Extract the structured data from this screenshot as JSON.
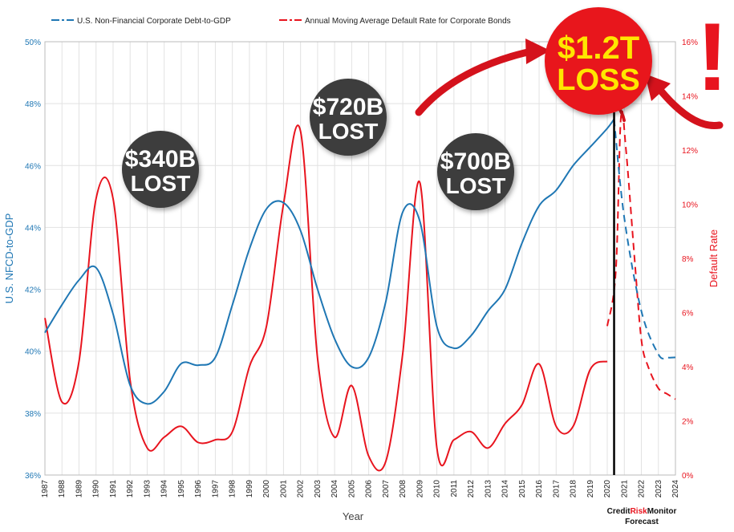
{
  "chart_data": {
    "type": "line",
    "legend": [
      {
        "name": "U.S. Non-Financial Corporate Debt-to-GDP",
        "color": "#1f77b4",
        "style": "solid-then-dashed"
      },
      {
        "name": "Annual Moving Average Default Rate for Corporate Bonds",
        "color": "#e8141e",
        "style": "solid-then-dashed"
      }
    ],
    "xlabel": "Year",
    "ylabel_left": "U.S. NFCD-to-GDP",
    "ylabel_right": "Default Rate",
    "x_categories": [
      "1987",
      "1988",
      "1989",
      "1990",
      "1991",
      "1992",
      "1993",
      "1994",
      "1995",
      "1996",
      "1997",
      "1998",
      "1999",
      "2000",
      "2001",
      "2002",
      "2003",
      "2004",
      "2005",
      "2006",
      "2007",
      "2008",
      "2009",
      "2010",
      "2011",
      "2012",
      "2013",
      "2014",
      "2015",
      "2016",
      "2017",
      "2018",
      "2019",
      "2020",
      "2021",
      "2022",
      "2023",
      "2024"
    ],
    "y_left": {
      "range": [
        36,
        50
      ],
      "ticks": [
        "36%",
        "38%",
        "40%",
        "42%",
        "44%",
        "46%",
        "48%",
        "50%"
      ]
    },
    "y_right": {
      "range": [
        0,
        16
      ],
      "ticks": [
        "0%",
        "2%",
        "4%",
        "6%",
        "8%",
        "10%",
        "12%",
        "14%",
        "16%"
      ]
    },
    "series": [
      {
        "name": "U.S. Non-Financial Corporate Debt-to-GDP",
        "axis": "left",
        "color": "#1f77b4",
        "points": [
          [
            1987,
            40.6
          ],
          [
            1988,
            41.5
          ],
          [
            1989,
            42.3
          ],
          [
            1990,
            42.7
          ],
          [
            1991,
            41.2
          ],
          [
            1992,
            38.9
          ],
          [
            1993,
            38.3
          ],
          [
            1994,
            38.7
          ],
          [
            1995,
            39.6
          ],
          [
            1996,
            39.55
          ],
          [
            1997,
            39.8
          ],
          [
            1998,
            41.5
          ],
          [
            1999,
            43.3
          ],
          [
            2000,
            44.6
          ],
          [
            2001,
            44.8
          ],
          [
            2002,
            43.9
          ],
          [
            2003,
            42.0
          ],
          [
            2004,
            40.4
          ],
          [
            2005,
            39.5
          ],
          [
            2006,
            39.8
          ],
          [
            2007,
            41.6
          ],
          [
            2008,
            44.5
          ],
          [
            2009,
            44.2
          ],
          [
            2010,
            40.8
          ],
          [
            2011,
            40.1
          ],
          [
            2012,
            40.5
          ],
          [
            2013,
            41.3
          ],
          [
            2014,
            42.0
          ],
          [
            2015,
            43.5
          ],
          [
            2016,
            44.7
          ],
          [
            2017,
            45.2
          ],
          [
            2018,
            46.0
          ],
          [
            2019,
            46.6
          ],
          [
            2020,
            47.2
          ],
          [
            2020.4,
            47.5
          ]
        ],
        "forecast": [
          [
            2020.4,
            47.5
          ],
          [
            2021,
            44.3
          ],
          [
            2022,
            41.3
          ],
          [
            2023,
            39.9
          ],
          [
            2023.5,
            39.8
          ],
          [
            2024,
            39.8
          ]
        ]
      },
      {
        "name": "Annual Moving Average Default Rate for Corporate Bonds",
        "axis": "right",
        "color": "#e8141e",
        "points": [
          [
            1987,
            5.8
          ],
          [
            1988,
            2.7
          ],
          [
            1989,
            4.2
          ],
          [
            1990,
            10.2
          ],
          [
            1991,
            10.2
          ],
          [
            1992,
            3.5
          ],
          [
            1993,
            1.0
          ],
          [
            1994,
            1.4
          ],
          [
            1995,
            1.8
          ],
          [
            1996,
            1.2
          ],
          [
            1997,
            1.3
          ],
          [
            1998,
            1.6
          ],
          [
            1999,
            4.0
          ],
          [
            2000,
            5.5
          ],
          [
            2001,
            10.0
          ],
          [
            2002,
            12.7
          ],
          [
            2003,
            4.3
          ],
          [
            2004,
            1.4
          ],
          [
            2005,
            3.3
          ],
          [
            2006,
            0.7
          ],
          [
            2007,
            0.5
          ],
          [
            2008,
            4.5
          ],
          [
            2009,
            10.8
          ],
          [
            2010,
            1.0
          ],
          [
            2011,
            1.3
          ],
          [
            2012,
            1.6
          ],
          [
            2013,
            1.0
          ],
          [
            2014,
            1.9
          ],
          [
            2015,
            2.6
          ],
          [
            2016,
            4.1
          ],
          [
            2017,
            1.8
          ],
          [
            2018,
            1.8
          ],
          [
            2019,
            3.9
          ],
          [
            2020,
            4.2
          ]
        ],
        "forecast": [
          [
            2020,
            5.5
          ],
          [
            2020.5,
            7.5
          ],
          [
            2020.8,
            13.2
          ],
          [
            2021.1,
            12.0
          ],
          [
            2021.6,
            8.0
          ],
          [
            2022,
            5.0
          ],
          [
            2022.4,
            4.0
          ],
          [
            2023,
            3.2
          ],
          [
            2023.5,
            3.0
          ],
          [
            2024,
            2.8
          ]
        ]
      }
    ],
    "forecast_marker_year": 2020.4,
    "annotations": [
      {
        "line1": "$340B",
        "line2": "LOST",
        "fill": "#3c3c3c",
        "text_color": "#ffffff"
      },
      {
        "line1": "$720B",
        "line2": "LOST",
        "fill": "#3c3c3c",
        "text_color": "#ffffff"
      },
      {
        "line1": "$700B",
        "line2": "LOST",
        "fill": "#3c3c3c",
        "text_color": "#ffffff"
      },
      {
        "line1": "$1.2T",
        "line2": "LOSS",
        "fill": "#e8141e",
        "text_color": "#ffe600"
      }
    ],
    "exclamation": "!",
    "branding": {
      "word1": "Credit",
      "word2": "Risk",
      "word3": "Monitor",
      "subtitle": "Forecast"
    }
  }
}
